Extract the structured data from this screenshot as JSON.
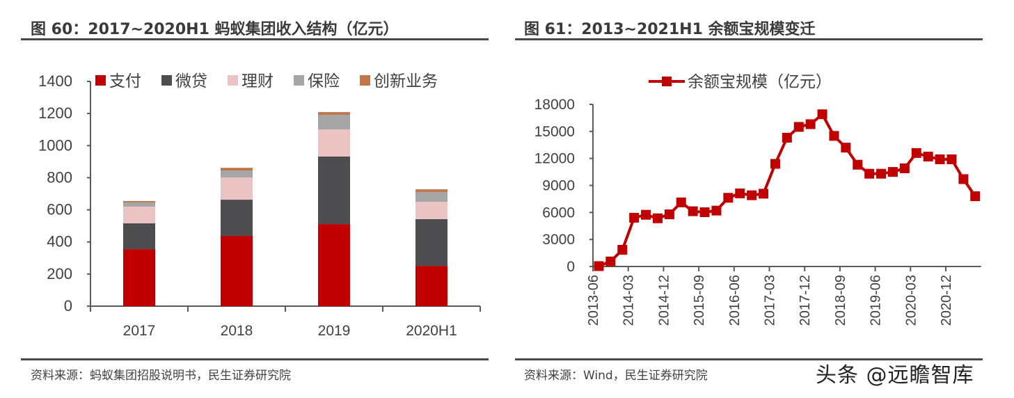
{
  "left": {
    "title": "图 60：2017~2020H1 蚂蚁集团收入结构（亿元）",
    "source": "资料来源：蚂蚁集团招股说明书，民生证券研究院"
  },
  "right": {
    "title": "图 61：2013~2021H1 余额宝规模变迁",
    "source": "资料来源：Wind，民生证券研究院"
  },
  "watermark": "头条 @远瞻智库",
  "chart_data": [
    {
      "type": "bar",
      "stacked": true,
      "title": "2017~2020H1 蚂蚁集团收入结构（亿元）",
      "categories": [
        "2017",
        "2018",
        "2019",
        "2020H1"
      ],
      "series": [
        {
          "name": "支付",
          "color": "#c00000",
          "values": [
            355,
            438,
            511,
            251
          ]
        },
        {
          "name": "微贷",
          "color": "#4d4d4f",
          "values": [
            161,
            225,
            421,
            291
          ]
        },
        {
          "name": "理财",
          "color": "#ecc3c3",
          "values": [
            104,
            139,
            169,
            108
          ]
        },
        {
          "name": "保险",
          "color": "#a6a6a6",
          "values": [
            26,
            43,
            91,
            61
          ]
        },
        {
          "name": "创新业务",
          "color": "#c0784a",
          "values": [
            9,
            17,
            17,
            17
          ]
        }
      ],
      "ylim": [
        0,
        1400
      ],
      "yticks": [
        "0",
        "200",
        "400",
        "600",
        "800",
        "1000",
        "1200",
        "1400"
      ],
      "legend_position": "top"
    },
    {
      "type": "line",
      "title": "2013~2021H1 余额宝规模变迁",
      "series": [
        {
          "name": "余额宝规模（亿元）",
          "color": "#c00000",
          "x": [
            "2013-06",
            "2013-09",
            "2013-12",
            "2014-03",
            "2014-06",
            "2014-09",
            "2014-12",
            "2015-03",
            "2015-06",
            "2015-09",
            "2015-12",
            "2016-03",
            "2016-06",
            "2016-09",
            "2016-12",
            "2017-03",
            "2017-06",
            "2017-09",
            "2017-12",
            "2018-03",
            "2018-06",
            "2018-09",
            "2018-12",
            "2019-03",
            "2019-06",
            "2019-09",
            "2019-12",
            "2020-03",
            "2020-06",
            "2020-09",
            "2020-12",
            "2021-03",
            "2021-06"
          ],
          "values": [
            42,
            557,
            1853,
            5413,
            5742,
            5349,
            5789,
            7117,
            6134,
            6021,
            6207,
            7628,
            8115,
            7908,
            8083,
            11396,
            14300,
            15500,
            15800,
            16900,
            14500,
            13200,
            11300,
            10300,
            10300,
            10500,
            10900,
            12600,
            12200,
            11900,
            11900,
            9700,
            7800
          ]
        }
      ],
      "xticks": [
        "2013-06",
        "2014-03",
        "2014-12",
        "2015-09",
        "2016-06",
        "2017-03",
        "2017-12",
        "2018-09",
        "2019-06",
        "2020-03",
        "2020-12"
      ],
      "ylim": [
        0,
        18000
      ],
      "yticks": [
        "0",
        "3000",
        "6000",
        "9000",
        "12000",
        "15000",
        "18000"
      ],
      "legend_position": "top"
    }
  ]
}
